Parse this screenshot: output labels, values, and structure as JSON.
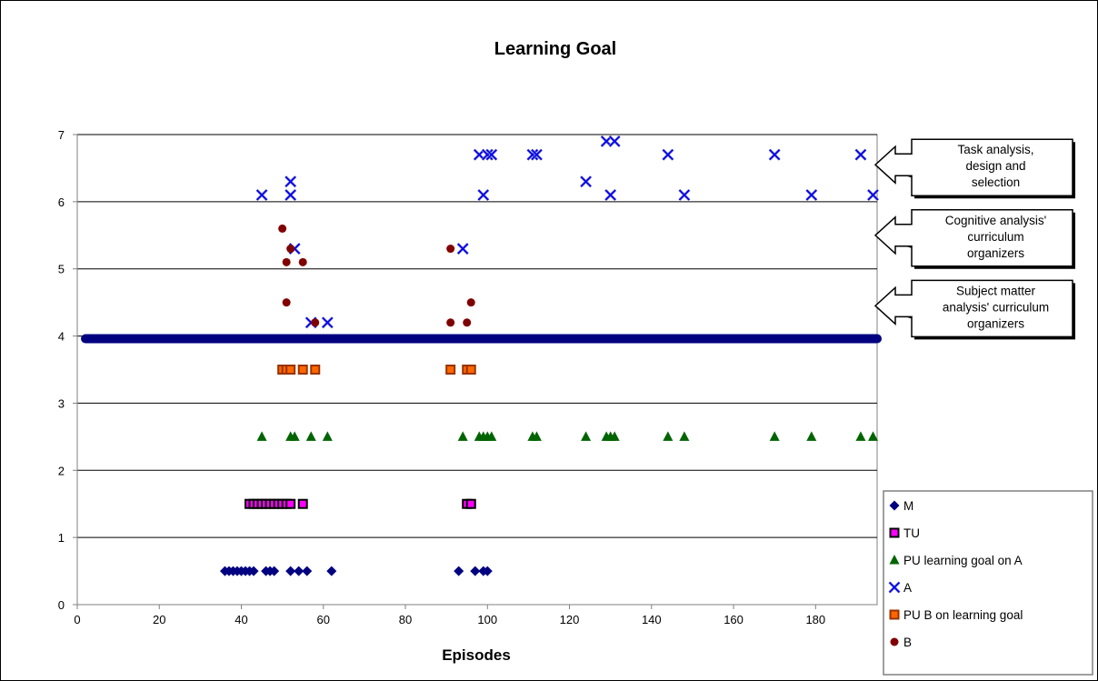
{
  "chart_data": {
    "type": "scatter",
    "title": "Learning Goal",
    "xlabel": "Episodes",
    "ylabel": "",
    "xlim": [
      0,
      195
    ],
    "ylim": [
      0,
      7
    ],
    "xticks": [
      0,
      20,
      40,
      60,
      80,
      100,
      120,
      140,
      160,
      180
    ],
    "yticks": [
      0,
      1,
      2,
      3,
      4,
      5,
      6,
      7
    ],
    "grid": "horizontal",
    "legend_position": "bottom-right",
    "baseline": {
      "y": 3.96,
      "x_start": 2,
      "x_end": 195,
      "color": "#000080"
    },
    "series": [
      {
        "name": "M",
        "marker": "diamond",
        "color": "#000080",
        "points": [
          [
            36,
            0.5
          ],
          [
            37,
            0.5
          ],
          [
            38,
            0.5
          ],
          [
            39,
            0.5
          ],
          [
            40,
            0.5
          ],
          [
            41,
            0.5
          ],
          [
            42,
            0.5
          ],
          [
            43,
            0.5
          ],
          [
            46,
            0.5
          ],
          [
            47,
            0.5
          ],
          [
            48,
            0.5
          ],
          [
            52,
            0.5
          ],
          [
            54,
            0.5
          ],
          [
            56,
            0.5
          ],
          [
            62,
            0.5
          ],
          [
            93,
            0.5
          ],
          [
            97,
            0.5
          ],
          [
            99,
            0.5
          ],
          [
            100,
            0.5
          ]
        ]
      },
      {
        "name": "TU",
        "marker": "square",
        "color": "#ff00ff",
        "stroke": "#000000",
        "points": [
          [
            42,
            1.5
          ],
          [
            43,
            1.5
          ],
          [
            44,
            1.5
          ],
          [
            45,
            1.5
          ],
          [
            46,
            1.5
          ],
          [
            47,
            1.5
          ],
          [
            48,
            1.5
          ],
          [
            49,
            1.5
          ],
          [
            50,
            1.5
          ],
          [
            51,
            1.5
          ],
          [
            52,
            1.5
          ],
          [
            55,
            1.5
          ],
          [
            95,
            1.5
          ],
          [
            96,
            1.5
          ]
        ]
      },
      {
        "name": "PU learning goal on A",
        "marker": "triangle",
        "color": "#006400",
        "points": [
          [
            45,
            2.5
          ],
          [
            52,
            2.5
          ],
          [
            53,
            2.5
          ],
          [
            57,
            2.5
          ],
          [
            61,
            2.5
          ],
          [
            94,
            2.5
          ],
          [
            98,
            2.5
          ],
          [
            99,
            2.5
          ],
          [
            100,
            2.5
          ],
          [
            101,
            2.5
          ],
          [
            111,
            2.5
          ],
          [
            112,
            2.5
          ],
          [
            124,
            2.5
          ],
          [
            129,
            2.5
          ],
          [
            130,
            2.5
          ],
          [
            131,
            2.5
          ],
          [
            144,
            2.5
          ],
          [
            148,
            2.5
          ],
          [
            170,
            2.5
          ],
          [
            179,
            2.5
          ],
          [
            191,
            2.5
          ],
          [
            194,
            2.5
          ]
        ]
      },
      {
        "name": "A",
        "marker": "x",
        "color": "#0000ff",
        "points": [
          [
            45,
            6.1
          ],
          [
            52,
            6.3
          ],
          [
            52,
            6.1
          ],
          [
            53,
            5.3
          ],
          [
            57,
            4.2
          ],
          [
            61,
            4.2
          ],
          [
            94,
            5.3
          ],
          [
            98,
            6.7
          ],
          [
            99,
            6.1
          ],
          [
            100,
            6.7
          ],
          [
            101,
            6.7
          ],
          [
            111,
            6.7
          ],
          [
            112,
            6.7
          ],
          [
            124,
            6.3
          ],
          [
            129,
            6.9
          ],
          [
            130,
            6.1
          ],
          [
            131,
            6.9
          ],
          [
            144,
            6.7
          ],
          [
            148,
            6.1
          ],
          [
            170,
            6.7
          ],
          [
            179,
            6.1
          ],
          [
            191,
            6.7
          ],
          [
            194,
            6.1
          ]
        ]
      },
      {
        "name": "PU B on learning goal",
        "marker": "square",
        "color": "#ff6600",
        "stroke": "#993300",
        "points": [
          [
            50,
            3.5
          ],
          [
            51,
            3.5
          ],
          [
            52,
            3.5
          ],
          [
            55,
            3.5
          ],
          [
            58,
            3.5
          ],
          [
            91,
            3.5
          ],
          [
            95,
            3.5
          ],
          [
            96,
            3.5
          ]
        ]
      },
      {
        "name": "B",
        "marker": "circle",
        "color": "#800000",
        "points": [
          [
            50,
            5.6
          ],
          [
            51,
            5.1
          ],
          [
            51,
            4.5
          ],
          [
            52,
            5.3
          ],
          [
            55,
            5.1
          ],
          [
            58,
            4.2
          ],
          [
            91,
            5.3
          ],
          [
            91,
            4.2
          ],
          [
            95,
            4.2
          ],
          [
            96,
            4.5
          ]
        ]
      }
    ],
    "annotations": [
      {
        "lines": [
          "Task analysis,",
          "design and",
          "selection"
        ],
        "target_y": 6.55
      },
      {
        "lines": [
          "Cognitive analysis'",
          "curriculum",
          "organizers"
        ],
        "target_y": 5.5
      },
      {
        "lines": [
          "Subject matter",
          "analysis' curriculum",
          "organizers"
        ],
        "target_y": 4.45
      }
    ]
  }
}
